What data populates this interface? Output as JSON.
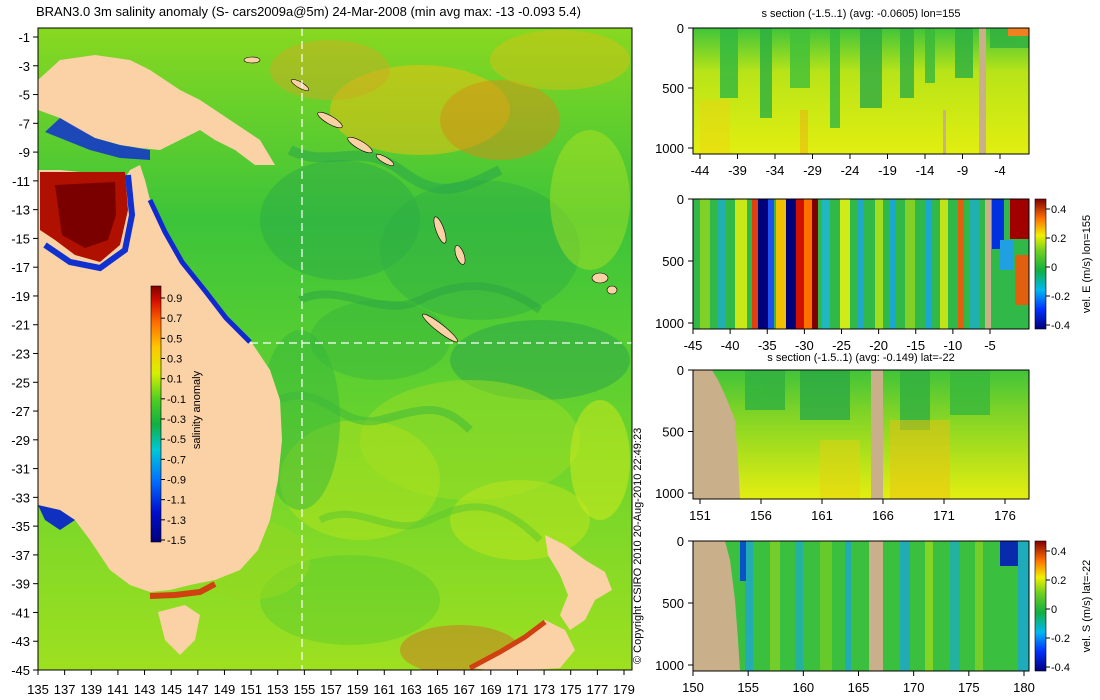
{
  "map_title": "BRAN3.0 3m salinity anomaly (S- cars2009a@5m) 24-Mar-2008 (min avg max: -13 -0.093 5.4)",
  "map_lat_ticks": [
    "-1",
    "-3",
    "-5",
    "-7",
    "-9",
    "-11",
    "-13",
    "-15",
    "-17",
    "-19",
    "-21",
    "-23",
    "-25",
    "-27",
    "-29",
    "-31",
    "-33",
    "-35",
    "-37",
    "-39",
    "-41",
    "-43",
    "-45"
  ],
  "map_lon_ticks": [
    "135",
    "137",
    "139",
    "141",
    "143",
    "145",
    "147",
    "149",
    "151",
    "153",
    "155",
    "157",
    "159",
    "161",
    "163",
    "165",
    "167",
    "169",
    "171",
    "173",
    "175",
    "177",
    "179"
  ],
  "colorbar": {
    "label": "salinity anomaly",
    "ticks": [
      "0.9",
      "0.7",
      "0.5",
      "0.3",
      "0.1",
      "-0.1",
      "-0.3",
      "-0.5",
      "-0.7",
      "-0.9",
      "-1.1",
      "-1.3",
      "-1.5"
    ]
  },
  "copyright": "© Copyright CSIRO 2010   20-Aug-2010 22:49:23",
  "panels": [
    {
      "title": "s section (-1.5..1) (avg: -0.0605) lon=155",
      "y_ticks": [
        "0",
        "500",
        "1000"
      ],
      "x_ticks": [
        "-44",
        "-39",
        "-34",
        "-29",
        "-24",
        "-19",
        "-14",
        "-9",
        "-4"
      ],
      "colorbar": null
    },
    {
      "title": "",
      "y_ticks": [
        "0",
        "500",
        "1000"
      ],
      "x_ticks": [
        "-45",
        "-40",
        "-35",
        "-30",
        "-25",
        "-20",
        "-15",
        "-10",
        "-5"
      ],
      "colorbar": {
        "label": "vel. E (m/s) lon=155",
        "ticks": [
          "0.4",
          "0.2",
          "0",
          "-0.2",
          "-0.4"
        ]
      }
    },
    {
      "title": "s section (-1.5..1) (avg: -0.149) lat=-22",
      "y_ticks": [
        "0",
        "500",
        "1000"
      ],
      "x_ticks": [
        "151",
        "156",
        "161",
        "166",
        "171",
        "176"
      ],
      "colorbar": null
    },
    {
      "title": "",
      "y_ticks": [
        "0",
        "500",
        "1000"
      ],
      "x_ticks": [
        "150",
        "155",
        "160",
        "165",
        "170",
        "175",
        "180"
      ],
      "colorbar": {
        "label": "vel. S (m/s) lat=-22",
        "ticks": [
          "0.4",
          "0.2",
          "0",
          "-0.2",
          "-0.4"
        ]
      }
    }
  ],
  "colors": {
    "ocean": "#3ec63a",
    "land": "#fbd2a6",
    "section_land": "#c9b08a",
    "bg": "#ffffff"
  }
}
